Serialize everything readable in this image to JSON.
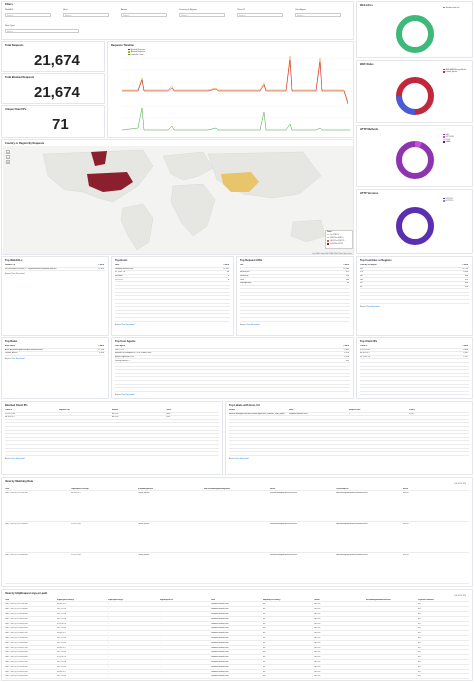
{
  "filters": {
    "title": "Filters",
    "rows": [
      {
        "label": "WebACL",
        "placeholder": "Select..."
      },
      {
        "label": "Host",
        "placeholder": "Select..."
      },
      {
        "label": "Action",
        "placeholder": "Select..."
      },
      {
        "label": "Country or Region",
        "placeholder": "Select..."
      },
      {
        "label": "Client IP",
        "placeholder": "Select..."
      },
      {
        "label": "User Agent",
        "placeholder": "Select..."
      }
    ],
    "rule_type": {
      "label": "Rule Type",
      "placeholder": "Select..."
    }
  },
  "metrics": [
    {
      "title": "Total Requests",
      "value": "21,674"
    },
    {
      "title": "Total Blocked Requests",
      "value": "21,674"
    },
    {
      "title": "Unique Client IPs",
      "value": "71"
    }
  ],
  "timeline": {
    "title": "Requests Timeline",
    "legend": [
      "Blocked Requests",
      "Allowed Requests",
      "Requests Count"
    ],
    "colors": {
      "blocked": "#c8102e",
      "allowed": "#e89b0d",
      "count": "#3fa535"
    }
  },
  "map": {
    "title": "Country or Region By Requests",
    "legend_title": "Count",
    "legend_items": [
      "1 to 3,180.75",
      "3,180.76 to 6,361.5",
      "6,361.51 to 9,542.25",
      "9,542.26 to 12,723"
    ],
    "colors": [
      "#f0d0a0",
      "#e8c46a",
      "#c86a4a",
      "#8b1f2e"
    ],
    "attribution": "Esri, HERE, Garmin, FAO, NOAA, USGS | Elastic Maps Service"
  },
  "donuts": [
    {
      "title": "Web ACLs",
      "legend": [
        "Sandbox web acl"
      ],
      "colors": [
        "#3fb97a"
      ]
    },
    {
      "title": "WAF Rules",
      "legend": [
        "AWS-AWSManagedRules",
        "Default_Action"
      ],
      "colors": [
        "#4a5bd6",
        "#c0283b"
      ]
    },
    {
      "title": "HTTP Methods",
      "legend": [
        "GET",
        "OPTIONS",
        "POST",
        "HEAD"
      ],
      "colors": [
        "#8e34b0",
        "#c450d0",
        "#e3a7ef",
        "#5b1d7a"
      ]
    },
    {
      "title": "HTTP Versions",
      "legend": [
        "HTTP/1.1",
        "HTTP/2.0"
      ],
      "colors": [
        "#5a2fb0",
        "#9b7ad8"
      ]
    }
  ],
  "top_webacl": {
    "title": "Top WebACLs",
    "headers": [
      "WebACL Id",
      "Count"
    ],
    "rows": [
      [
        "arn:aws:wafv2:us-east-1:...:regional/webacl/Sandbox-web-acl",
        "21,674"
      ]
    ],
    "export": "Export:",
    "raw": "Raw",
    "formatted": "Formatted"
  },
  "top_hosts": {
    "title": "Top Hosts",
    "headers": [
      "Host",
      "Count"
    ],
    "rows": [
      [
        "sandbox-website.com",
        "21,597"
      ],
      [
        "52.73.42.78",
        "48"
      ],
      [
        "localhost",
        "8"
      ],
      [
        "127.0.0.1",
        "6"
      ],
      [
        "",
        ""
      ],
      [
        "",
        ""
      ],
      [
        "",
        ""
      ],
      [
        "",
        ""
      ],
      [
        "",
        ""
      ],
      [
        "",
        ""
      ],
      [
        "",
        ""
      ],
      [
        "",
        ""
      ],
      [
        "",
        ""
      ],
      [
        "",
        ""
      ],
      [
        "",
        ""
      ]
    ],
    "export": "Export:",
    "raw": "Raw",
    "formatted": "Formatted"
  },
  "top_request_uris": {
    "title": "Top Request URIs",
    "headers": [
      "URI",
      "Count"
    ],
    "rows": [
      [
        "/",
        "13,140"
      ],
      [
        "/favicon.ico",
        "512"
      ],
      [
        "/robots.txt",
        "214"
      ],
      [
        "/.env",
        "160"
      ],
      [
        "/wp-login.php",
        "98"
      ],
      [
        "",
        ""
      ],
      [
        "",
        ""
      ],
      [
        "",
        ""
      ],
      [
        "",
        ""
      ],
      [
        "",
        ""
      ],
      [
        "",
        ""
      ],
      [
        "",
        ""
      ],
      [
        "",
        ""
      ],
      [
        "",
        ""
      ],
      [
        "",
        ""
      ]
    ],
    "export": "Export:",
    "raw": "Raw",
    "formatted": "Formatted"
  },
  "top_countries": {
    "title": "Top Countries or Regions",
    "headers": [
      "Country or Region",
      "Count"
    ],
    "rows": [
      [
        "US",
        "12,723"
      ],
      [
        "CN",
        "5,014"
      ],
      [
        "DE",
        "894"
      ],
      [
        "GB",
        "611"
      ],
      [
        "RU",
        "403"
      ],
      [
        "IN",
        "298"
      ],
      [
        "",
        ""
      ],
      [
        "",
        ""
      ],
      [
        "",
        ""
      ],
      [
        "",
        ""
      ]
    ],
    "export": "Export:",
    "raw": "Raw",
    "formatted": "Formatted"
  },
  "top_rules": {
    "title": "Top Rules",
    "headers": [
      "Rule Name",
      "Count"
    ],
    "rows": [
      [
        "AWS-AWSManagedRulesBotControlRuleSet",
        "17,318"
      ],
      [
        "Default_Action",
        "4,356"
      ]
    ],
    "export": "Export:",
    "raw": "Raw",
    "formatted": "Formatted"
  },
  "top_user_agents": {
    "title": "Top User Agents",
    "headers": [
      "User Agent",
      "Count"
    ],
    "rows": [
      [
        "curl/7.79.1",
        "9,861"
      ],
      [
        "Mozilla/5.0 (Windows NT 10.0; Win64; x64)",
        "3,210"
      ],
      [
        "python-requests/2.28.1",
        "1,554"
      ],
      [
        "Go-http-client/1.1",
        "901"
      ],
      [
        "",
        ""
      ],
      [
        "",
        ""
      ],
      [
        "",
        ""
      ],
      [
        "",
        ""
      ],
      [
        "",
        ""
      ],
      [
        "",
        ""
      ],
      [
        "",
        ""
      ],
      [
        "",
        ""
      ]
    ],
    "export": "Export:",
    "raw": "Raw",
    "formatted": "Formatted"
  },
  "top_client_ips": {
    "title": "Top Client IPs",
    "headers": [
      "Client IP",
      "Count"
    ],
    "rows": [
      [
        "3.91.170.10",
        "9,830"
      ],
      [
        "44.202.31.7",
        "3,201"
      ],
      [
        "52.73.42.78",
        "1,117"
      ],
      [
        "",
        ""
      ],
      [
        "",
        ""
      ],
      [
        "",
        ""
      ],
      [
        "",
        ""
      ],
      [
        "",
        ""
      ],
      [
        "",
        ""
      ],
      [
        "",
        ""
      ],
      [
        "",
        ""
      ],
      [
        "",
        ""
      ],
      [
        "",
        ""
      ],
      [
        "",
        ""
      ],
      [
        "",
        ""
      ]
    ],
    "export": "Export:",
    "raw": "Raw",
    "formatted": "Formatted"
  },
  "blocked_ips": {
    "title": "Blocked Client IPs",
    "headers": [
      "Client IP",
      "Request URI",
      "Action",
      "Count"
    ],
    "rows": [
      [
        "3.91.170.10",
        "/",
        "BLOCK",
        "9,830"
      ],
      [
        "44.202.31.7",
        "/",
        "BLOCK",
        "3,201"
      ],
      [
        "",
        "",
        " ",
        ""
      ],
      [
        "",
        "",
        "",
        ""
      ],
      [
        "",
        "",
        "",
        ""
      ],
      [
        "",
        "",
        "",
        ""
      ],
      [
        "",
        "",
        "",
        ""
      ],
      [
        "",
        "",
        "",
        ""
      ],
      [
        "",
        "",
        "",
        ""
      ],
      [
        "",
        "",
        "",
        ""
      ],
      [
        "",
        "",
        "",
        ""
      ],
      [
        "",
        "",
        "",
        ""
      ]
    ],
    "export": "Export:",
    "raw": "Raw",
    "formatted": "Formatted"
  },
  "top_labels": {
    "title": "Top Labels with Host, Uri",
    "headers": [
      "Labels",
      "Host",
      "Request URI",
      "Count"
    ],
    "rows": [
      [
        "awswaf:managed:aws:bot-control:signal:non_browser_user_agent",
        "sandbox-website.com",
        "/",
        "9,612"
      ],
      [
        "",
        "",
        "",
        ""
      ],
      [
        "",
        "",
        "",
        ""
      ],
      [
        "",
        "",
        "",
        ""
      ],
      [
        "",
        "",
        "",
        ""
      ],
      [
        "",
        "",
        "",
        ""
      ],
      [
        "",
        "",
        "",
        ""
      ],
      [
        "",
        "",
        "",
        ""
      ],
      [
        "",
        "",
        "",
        ""
      ],
      [
        "",
        "",
        "",
        ""
      ],
      [
        "",
        "",
        "",
        ""
      ],
      [
        "",
        "",
        "",
        ""
      ]
    ],
    "export": "Export:",
    "raw": "Raw",
    "formatted": "Formatted"
  },
  "view_matching": {
    "title": "View by Matching Rule",
    "pager": "1-50 of 21,674",
    "headers": [
      "Time",
      "httpRequest.clientIp",
      "terminatingRuleId",
      "nonTerminatingMatchingRules",
      "labels",
      "ruleGroupList",
      "action"
    ],
    "rows": [
      [
        "Jan 1, 2023 @ 10:17:01.000",
        "44.202.31.7",
        "Default_Action",
        "",
        "awswaf:managed:aws:bot-control",
        "AWSManagedRulesBotControlRuleSet",
        "BLOCK"
      ],
      [
        "Jan 1, 2023 @ 10:17:00.000",
        "3.91.170.10",
        "Default_Action",
        "",
        "awswaf:managed:aws:bot-control",
        "AWSManagedRulesBotControlRuleSet",
        "BLOCK"
      ],
      [
        "Jan 1, 2023 @ 10:16:58.000",
        "3.91.170.10",
        "Default_Action",
        "",
        "awswaf:managed:aws:bot-control",
        "AWSManagedRulesBotControlRuleSet",
        "BLOCK"
      ]
    ]
  },
  "view_ua": {
    "title": "View by HttpRequest args,uri,path",
    "pager": "1-50 of 21,674",
    "headers": [
      "Time",
      "httpRequest.clientIp",
      "httpRequest.args",
      "httpRequest.uri",
      "host",
      "httpRequest.country",
      "action",
      "terminatingRuleMatchDetails",
      "responseCodeSent"
    ],
    "rows": [
      [
        "Jan 1, 2023 @ 10:17:01.000",
        "44.202.31.7",
        "-",
        "/",
        "sandbox-website.com",
        "US",
        "BLOCK",
        "",
        "403"
      ],
      [
        "Jan 1, 2023 @ 10:17:00.000",
        "3.91.170.10",
        "-",
        "/",
        "sandbox-website.com",
        "US",
        "BLOCK",
        "",
        "403"
      ],
      [
        "Jan 1, 2023 @ 10:16:58.000",
        "3.91.170.10",
        "-",
        "/",
        "sandbox-website.com",
        "US",
        "BLOCK",
        "",
        "403"
      ],
      [
        "Jan 1, 2023 @ 10:16:55.000",
        "3.91.170.10",
        "-",
        "/",
        "sandbox-website.com",
        "US",
        "BLOCK",
        "",
        "403"
      ],
      [
        "Jan 1, 2023 @ 10:16:52.000",
        "52.73.42.78",
        "-",
        "/",
        "sandbox-website.com",
        "US",
        "BLOCK",
        "",
        "403"
      ],
      [
        "Jan 1, 2023 @ 10:16:49.000",
        "3.91.170.10",
        "-",
        "/",
        "sandbox-website.com",
        "US",
        "BLOCK",
        "",
        "403"
      ],
      [
        "Jan 1, 2023 @ 10:16:47.000",
        "44.202.31.7",
        "-",
        "/",
        "sandbox-website.com",
        "US",
        "BLOCK",
        "",
        "403"
      ],
      [
        "Jan 1, 2023 @ 10:16:44.000",
        "3.91.170.10",
        "-",
        "/",
        "sandbox-website.com",
        "US",
        "BLOCK",
        "",
        "403"
      ],
      [
        "Jan 1, 2023 @ 10:16:40.000",
        "3.91.170.10",
        "-",
        "/",
        "sandbox-website.com",
        "US",
        "BLOCK",
        "",
        "403"
      ],
      [
        "Jan 1, 2023 @ 10:16:37.000",
        "44.202.31.7",
        "-",
        "/",
        "sandbox-website.com",
        "US",
        "BLOCK",
        "",
        "403"
      ],
      [
        "Jan 1, 2023 @ 10:16:33.000",
        "3.91.170.10",
        "-",
        "/",
        "sandbox-website.com",
        "US",
        "BLOCK",
        "",
        "403"
      ],
      [
        "Jan 1, 2023 @ 10:16:30.000",
        "52.73.42.78",
        "-",
        "/",
        "sandbox-website.com",
        "US",
        "BLOCK",
        "",
        "403"
      ],
      [
        "Jan 1, 2023 @ 10:16:27.000",
        "3.91.170.10",
        "-",
        "/",
        "sandbox-website.com",
        "US",
        "BLOCK",
        "",
        "403"
      ],
      [
        "Jan 1, 2023 @ 10:16:24.000",
        "3.91.170.10",
        "-",
        "/",
        "sandbox-website.com",
        "US",
        "BLOCK",
        "",
        "403"
      ],
      [
        "Jan 1, 2023 @ 10:16:21.000",
        "44.202.31.7",
        "-",
        "/",
        "sandbox-website.com",
        "US",
        "BLOCK",
        "",
        "403"
      ],
      [
        "Jan 1, 2023 @ 10:16:18.000",
        "3.91.170.10",
        "-",
        "/",
        "sandbox-website.com",
        "US",
        "BLOCK",
        "",
        "403"
      ]
    ]
  }
}
